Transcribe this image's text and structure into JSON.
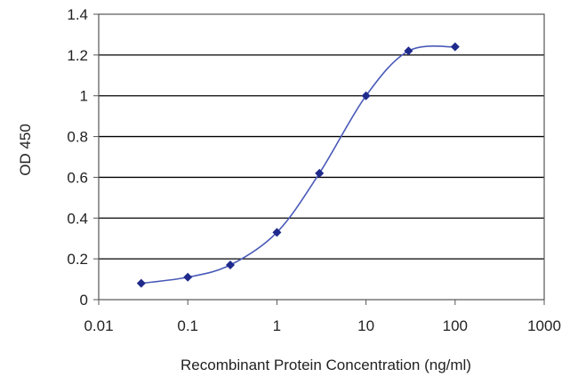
{
  "chart_data": {
    "type": "line",
    "title": "",
    "xlabel": "Recombinant Protein Concentration (ng/ml)",
    "ylabel": "OD 450",
    "x_scale": "log",
    "xlim": [
      0.01,
      1000
    ],
    "ylim": [
      0,
      1.4
    ],
    "x_ticks": [
      "0.01",
      "0.1",
      "1",
      "10",
      "100",
      "1000"
    ],
    "y_ticks": [
      "0",
      "0.2",
      "0.4",
      "0.6",
      "0.8",
      "1",
      "1.2",
      "1.4"
    ],
    "grid": "horizontal",
    "legend": "none",
    "series": [
      {
        "x": [
          0.03,
          0.1,
          0.3,
          1,
          3,
          10,
          30,
          100
        ],
        "y": [
          0.08,
          0.11,
          0.17,
          0.33,
          0.62,
          1.0,
          1.22,
          1.24
        ]
      }
    ],
    "colors": {
      "line": "#4a5ab8",
      "marker": "#1f2a8c",
      "grid": "#000000",
      "plot_bg": "#ffffff"
    }
  }
}
